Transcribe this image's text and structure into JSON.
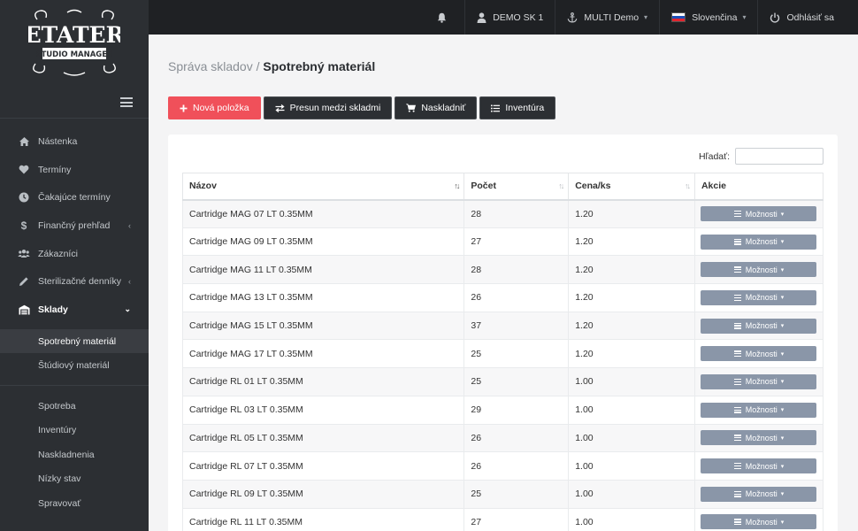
{
  "brand": {
    "logo_top": "ETATER",
    "logo_bottom": "STUDIO MANAGER"
  },
  "sidebar": {
    "items": [
      {
        "label": "Nástenka",
        "icon": "home-icon",
        "arrow": ""
      },
      {
        "label": "Termíny",
        "icon": "heart-icon",
        "arrow": ""
      },
      {
        "label": "Čakajúce termíny",
        "icon": "clock-icon",
        "arrow": ""
      },
      {
        "label": "Finančný prehľad",
        "icon": "dollar-icon",
        "arrow": "‹"
      },
      {
        "label": "Zákazníci",
        "icon": "users-icon",
        "arrow": ""
      },
      {
        "label": "Sterilizačné denníky",
        "icon": "pen-icon",
        "arrow": "‹"
      },
      {
        "label": "Sklady",
        "icon": "warehouse-icon",
        "arrow": "⌄"
      }
    ],
    "submenu_a": [
      {
        "label": "Spotrebný materiál"
      },
      {
        "label": "Štúdiový materiál"
      }
    ],
    "submenu_b": [
      {
        "label": "Spotreba"
      },
      {
        "label": "Inventúry"
      },
      {
        "label": "Naskladnenia"
      },
      {
        "label": "Nízky stav"
      },
      {
        "label": "Spravovať"
      }
    ]
  },
  "topbar": {
    "user": "DEMO SK 1",
    "studio": "MULTI Demo",
    "language": "Slovenčina",
    "logout": "Odhlásiť sa"
  },
  "breadcrumb": {
    "parent": "Správa skladov",
    "separator": "/",
    "current": "Spotrebný materiál"
  },
  "actions": {
    "new_item": "Nová položka",
    "transfer": "Presun medzi skladmi",
    "stock_in": "Naskladniť",
    "inventory": "Inventúra"
  },
  "search": {
    "label": "Hľadať:",
    "value": ""
  },
  "table": {
    "columns": [
      "Názov",
      "Počet",
      "Cena/ks",
      "Akcie"
    ],
    "options_label": "Možnosti",
    "rows": [
      {
        "name": "Cartridge MAG 07 LT 0.35MM",
        "count": "28",
        "price": "1.20"
      },
      {
        "name": "Cartridge MAG 09 LT 0.35MM",
        "count": "27",
        "price": "1.20"
      },
      {
        "name": "Cartridge MAG 11 LT 0.35MM",
        "count": "28",
        "price": "1.20"
      },
      {
        "name": "Cartridge MAG 13 LT 0.35MM",
        "count": "26",
        "price": "1.20"
      },
      {
        "name": "Cartridge MAG 15 LT 0.35MM",
        "count": "37",
        "price": "1.20"
      },
      {
        "name": "Cartridge MAG 17 LT 0.35MM",
        "count": "25",
        "price": "1.20"
      },
      {
        "name": "Cartridge RL 01 LT 0.35MM",
        "count": "25",
        "price": "1.00"
      },
      {
        "name": "Cartridge RL 03 LT 0.35MM",
        "count": "29",
        "price": "1.00"
      },
      {
        "name": "Cartridge RL 05 LT 0.35MM",
        "count": "26",
        "price": "1.00"
      },
      {
        "name": "Cartridge RL 07 LT 0.35MM",
        "count": "26",
        "price": "1.00"
      },
      {
        "name": "Cartridge RL 09 LT 0.35MM",
        "count": "25",
        "price": "1.00"
      },
      {
        "name": "Cartridge RL 11 LT 0.35MM",
        "count": "27",
        "price": "1.00"
      }
    ]
  },
  "colors": {
    "sidebar": "#2c2f33",
    "topbar": "#1f2124",
    "accent_red": "#f0505a",
    "options_button": "#8a96a8"
  }
}
